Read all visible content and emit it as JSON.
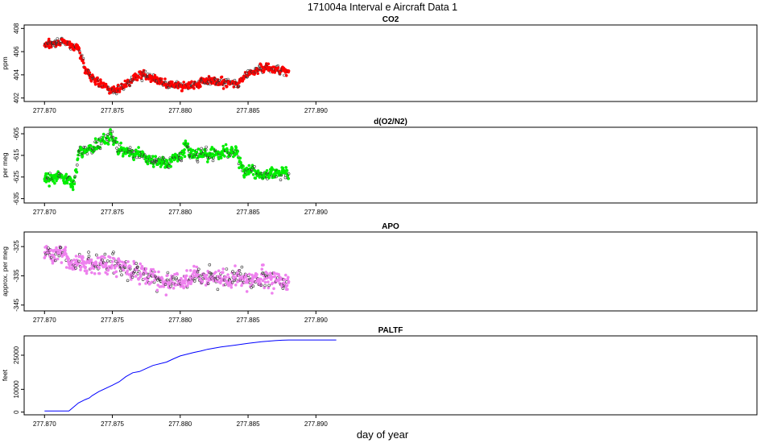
{
  "title": "171004a   Interval e Aircraft Data 1",
  "xlabel": "day of year",
  "colors": {
    "co2": "#ff0000",
    "o2n2": "#00ee00",
    "apo": "#ee82ee",
    "paltf": "#0000ff",
    "axis": "#000000"
  },
  "chart_data": [
    {
      "type": "scatter",
      "title": "CO2",
      "ylabel": "ppm",
      "xlim": [
        277.8685,
        277.9225
      ],
      "ylim": [
        401.7,
        408.3
      ],
      "x_ticks": [
        "277.870",
        "277.875",
        "277.880",
        "277.885",
        "277.890"
      ],
      "y_ticks": [
        "402",
        "404",
        "406",
        "408"
      ],
      "x_range": [
        277.87,
        277.888
      ],
      "anchors_x": [
        277.87,
        277.8715,
        277.872,
        277.8725,
        277.8728,
        277.873,
        277.874,
        277.875,
        277.8755,
        277.877,
        277.8785,
        277.879,
        277.88,
        277.881,
        277.882,
        277.883,
        277.884,
        277.8843,
        277.8848,
        277.8855,
        277.886,
        277.887,
        277.888
      ],
      "anchors_y": [
        406.5,
        406.9,
        406.5,
        406.2,
        405.2,
        404.4,
        403.3,
        402.7,
        402.8,
        404.0,
        403.6,
        403.1,
        403.0,
        403.1,
        403.6,
        403.3,
        403.2,
        403.2,
        404.0,
        404.3,
        404.6,
        404.6,
        404.3
      ],
      "noise": 0.32,
      "n_points": 720
    },
    {
      "type": "scatter",
      "title": "d(O2/N2)",
      "ylabel": "per meg",
      "xlim": [
        277.8685,
        277.9225
      ],
      "ylim": [
        -637,
        -602
      ],
      "x_ticks": [
        "277.870",
        "277.875",
        "277.880",
        "277.885",
        "277.890"
      ],
      "y_ticks": [
        "-635",
        "-625",
        "-615",
        "-605"
      ],
      "x_range": [
        277.87,
        277.888
      ],
      "anchors_x": [
        277.87,
        277.871,
        277.8718,
        277.8722,
        277.8725,
        277.874,
        277.8748,
        277.875,
        277.8755,
        277.877,
        277.878,
        277.879,
        277.88,
        277.8805,
        277.881,
        277.882,
        277.8835,
        277.8842,
        277.8845,
        277.8855,
        277.8865,
        277.8875,
        277.888
      ],
      "anchors_y": [
        -626,
        -625,
        -626,
        -628,
        -614,
        -610,
        -606,
        -607,
        -613,
        -614,
        -618,
        -618,
        -615,
        -611,
        -615,
        -614,
        -614,
        -613,
        -622,
        -623,
        -624,
        -623,
        -624
      ],
      "noise": 2.4,
      "n_points": 720
    },
    {
      "type": "scatter",
      "title": "APO",
      "ylabel": "approx. per meg",
      "xlim": [
        277.8685,
        277.9225
      ],
      "ylim": [
        -347,
        -320
      ],
      "x_ticks": [
        "277.870",
        "277.875",
        "277.880",
        "277.885",
        "277.890"
      ],
      "y_ticks": [
        "-345",
        "-335",
        "-325"
      ],
      "x_range": [
        277.87,
        277.888
      ],
      "anchors_x": [
        277.87,
        277.871,
        277.8715,
        277.872,
        277.873,
        277.875,
        277.877,
        277.879,
        277.88,
        277.881,
        277.883,
        277.885,
        277.887,
        277.888
      ],
      "anchors_y": [
        -328,
        -327,
        -328,
        -331,
        -331,
        -331,
        -333,
        -337,
        -337,
        -335,
        -336,
        -336,
        -336,
        -338
      ],
      "noise": 3.0,
      "n_points": 720
    },
    {
      "type": "line",
      "title": "PALTF",
      "ylabel": "feet",
      "xlim": [
        277.8685,
        277.9225
      ],
      "ylim": [
        -1200,
        33500
      ],
      "x_ticks": [
        "277.870",
        "277.875",
        "277.880",
        "277.885",
        "277.890"
      ],
      "y_ticks": [
        "0",
        "10000",
        "25000"
      ],
      "x": [
        277.87,
        277.8718,
        277.872,
        277.8725,
        277.873,
        277.8733,
        277.8735,
        277.874,
        277.875,
        277.8755,
        277.876,
        277.8765,
        277.877,
        277.8775,
        277.878,
        277.879,
        277.8795,
        277.88,
        277.881,
        277.8815,
        277.882,
        277.883,
        277.884,
        277.885,
        277.886,
        277.887,
        277.8875,
        277.888,
        277.8895,
        277.8915
      ],
      "y": [
        500,
        500,
        1500,
        4000,
        5500,
        6200,
        7200,
        9000,
        11800,
        13300,
        15600,
        17300,
        17800,
        19200,
        20500,
        22000,
        23400,
        24700,
        26200,
        26800,
        27600,
        28600,
        29400,
        30200,
        30900,
        31400,
        31600,
        31700,
        31700,
        31700
      ]
    }
  ]
}
